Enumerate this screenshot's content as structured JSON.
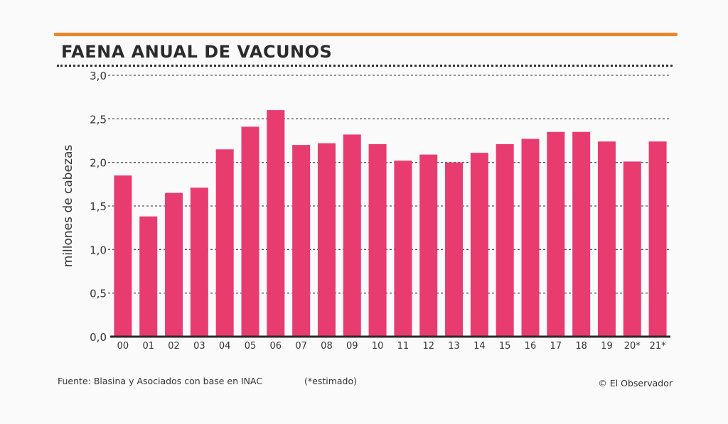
{
  "header": {
    "title": "FAENA ANUAL DE VACUNOS"
  },
  "footer": {
    "source": "Fuente: Blasina y Asociados con base en INAC",
    "estimate_note": "(*estimado)",
    "credit": "© El Observador"
  },
  "colors": {
    "bar": "#e83c71",
    "accent_rule": "#e8862c"
  },
  "chart_data": {
    "type": "bar",
    "title": "FAENA ANUAL DE VACUNOS",
    "xlabel": "",
    "ylabel": "millones de cabezas",
    "categories": [
      "00",
      "01",
      "02",
      "03",
      "04",
      "05",
      "06",
      "07",
      "08",
      "09",
      "10",
      "11",
      "12",
      "13",
      "14",
      "15",
      "16",
      "17",
      "18",
      "19",
      "20*",
      "21*"
    ],
    "values": [
      1.85,
      1.38,
      1.65,
      1.71,
      2.15,
      2.41,
      2.6,
      2.2,
      2.22,
      2.32,
      2.21,
      2.02,
      2.09,
      2.0,
      2.11,
      2.21,
      2.27,
      2.35,
      2.35,
      2.24,
      2.01,
      2.24
    ],
    "ylim": [
      0,
      3
    ],
    "yticks": [
      "0,0",
      "0,5",
      "1,0",
      "1,5",
      "2,0",
      "2,5",
      "3,0"
    ],
    "ytick_values": [
      0,
      0.5,
      1.0,
      1.5,
      2.0,
      2.5,
      3.0
    ],
    "grid": true
  }
}
